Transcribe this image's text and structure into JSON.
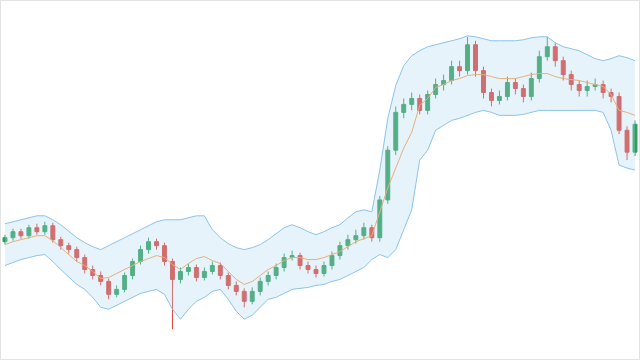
{
  "chart_data": {
    "type": "candlestick",
    "x": [
      0,
      1,
      2,
      3,
      4,
      5,
      6,
      7,
      8,
      9,
      10,
      11,
      12,
      13,
      14,
      15,
      16,
      17,
      18,
      19,
      20,
      21,
      22,
      23,
      24,
      25,
      26,
      27,
      28,
      29,
      30,
      31,
      32,
      33,
      34,
      35,
      36,
      37,
      38,
      39,
      40,
      41,
      42,
      43,
      44,
      45,
      46,
      47,
      48,
      49,
      50,
      51,
      52,
      53,
      54,
      55,
      56,
      57,
      58,
      59,
      60,
      61,
      62,
      63,
      64,
      65,
      66,
      67,
      68,
      69,
      70,
      71,
      72,
      73,
      74,
      75,
      76,
      77,
      78,
      79
    ],
    "xlim": [
      -0.5,
      79.5
    ],
    "ylim": [
      0,
      360
    ],
    "grid": false,
    "tick_labels": false,
    "series": [
      {
        "type": "candlestick",
        "open": [
          118,
          122,
          128,
          124,
          132,
          128,
          134,
          120,
          114,
          110,
          102,
          90,
          84,
          78,
          65,
          70,
          84,
          98,
          110,
          118,
          114,
          98,
          80,
          88,
          92,
          82,
          88,
          94,
          84,
          74,
          68,
          58,
          68,
          78,
          84,
          92,
          102,
          104,
          94,
          90,
          86,
          94,
          104,
          114,
          120,
          124,
          132,
          122,
          160,
          210,
          248,
          256,
          262,
          250,
          266,
          276,
          280,
          294,
          290,
          316,
          290,
          268,
          260,
          264,
          278,
          272,
          264,
          282,
          304,
          314,
          300,
          286,
          276,
          270,
          274,
          276,
          268,
          264,
          230,
          208
        ],
        "high": [
          125,
          131,
          131,
          135,
          136,
          138,
          137,
          123,
          117,
          113,
          105,
          94,
          88,
          81,
          74,
          87,
          101,
          114,
          122,
          121,
          117,
          101,
          92,
          96,
          95,
          92,
          98,
          97,
          87,
          78,
          71,
          72,
          82,
          88,
          96,
          106,
          109,
          107,
          98,
          94,
          98,
          108,
          118,
          125,
          130,
          137,
          135,
          164,
          214,
          254,
          262,
          268,
          266,
          270,
          282,
          286,
          300,
          300,
          324,
          320,
          294,
          272,
          270,
          284,
          282,
          276,
          288,
          310,
          324,
          318,
          304,
          290,
          280,
          280,
          282,
          280,
          272,
          268,
          234,
          240
        ],
        "low": [
          115,
          119,
          121,
          121,
          125,
          125,
          117,
          110,
          106,
          98,
          86,
          80,
          74,
          60,
          62,
          67,
          80,
          95,
          106,
          110,
          94,
          30,
          76,
          84,
          78,
          79,
          85,
          80,
          70,
          64,
          52,
          55,
          64,
          74,
          80,
          88,
          99,
          90,
          86,
          82,
          83,
          90,
          100,
          110,
          116,
          120,
          118,
          118,
          156,
          205,
          242,
          250,
          246,
          246,
          262,
          270,
          276,
          284,
          286,
          284,
          262,
          254,
          256,
          260,
          266,
          258,
          260,
          278,
          300,
          294,
          280,
          270,
          264,
          264,
          270,
          262,
          258,
          226,
          200,
          204
        ],
        "close": [
          122,
          128,
          124,
          132,
          128,
          134,
          120,
          114,
          110,
          102,
          90,
          84,
          78,
          65,
          70,
          84,
          98,
          110,
          118,
          114,
          98,
          80,
          88,
          92,
          82,
          88,
          94,
          84,
          74,
          68,
          58,
          68,
          78,
          84,
          92,
          102,
          104,
          94,
          90,
          86,
          94,
          104,
          114,
          120,
          124,
          132,
          122,
          160,
          210,
          248,
          256,
          262,
          250,
          266,
          276,
          280,
          294,
          290,
          316,
          290,
          268,
          260,
          264,
          278,
          272,
          264,
          282,
          304,
          314,
          300,
          286,
          276,
          270,
          274,
          276,
          268,
          264,
          230,
          208,
          236
        ]
      },
      {
        "type": "line",
        "color": "#8cc4ea",
        "values": [
          94,
          97,
          100,
          102,
          104,
          105,
          98,
          90,
          82,
          75,
          70,
          62,
          52,
          50,
          54,
          58,
          62,
          66,
          68,
          70,
          65,
          50,
          40,
          50,
          58,
          62,
          68,
          70,
          60,
          48,
          40,
          44,
          52,
          60,
          62,
          66,
          70,
          71,
          72,
          74,
          75,
          78,
          80,
          84,
          88,
          92,
          100,
          105,
          102,
          110,
          130,
          150,
          200,
          210,
          230,
          235,
          240,
          242,
          245,
          248,
          250,
          248,
          245,
          245,
          245,
          246,
          248,
          250,
          250,
          250,
          250,
          250,
          250,
          250,
          250,
          248,
          230,
          195,
          192,
          190
        ]
      },
      {
        "type": "line",
        "color": "#8cc4ea",
        "values": [
          136,
          138,
          140,
          142,
          144,
          144,
          140,
          135,
          128,
          122,
          117,
          113,
          110,
          114,
          118,
          122,
          126,
          130,
          134,
          138,
          140,
          140,
          140,
          142,
          144,
          144,
          130,
          122,
          116,
          112,
          110,
          112,
          115,
          120,
          126,
          132,
          135,
          132,
          128,
          125,
          128,
          132,
          135,
          142,
          148,
          150,
          148,
          190,
          242,
          275,
          295,
          305,
          310,
          314,
          316,
          318,
          320,
          322,
          325,
          324,
          322,
          320,
          320,
          320,
          320,
          321,
          323,
          324,
          324,
          318,
          314,
          312,
          310,
          306,
          302,
          300,
          302,
          305,
          303,
          300
        ]
      },
      {
        "type": "line",
        "color": "#e6b07c",
        "values": [
          115,
          118,
          120,
          122,
          124,
          124,
          119,
          112,
          105,
          98,
          94,
          88,
          81,
          82,
          86,
          90,
          94,
          98,
          101,
          104,
          102,
          95,
          90,
          96,
          101,
          103,
          99,
          96,
          88,
          80,
          75,
          78,
          84,
          90,
          94,
          99,
          102,
          102,
          100,
          100,
          102,
          105,
          108,
          113,
          118,
          121,
          124,
          148,
          172,
          192,
          212,
          228,
          255,
          262,
          273,
          276,
          280,
          282,
          285,
          286,
          286,
          284,
          282,
          282,
          282,
          284,
          286,
          287,
          287,
          284,
          282,
          281,
          280,
          278,
          276,
          274,
          266,
          250,
          248,
          245
        ]
      }
    ]
  }
}
